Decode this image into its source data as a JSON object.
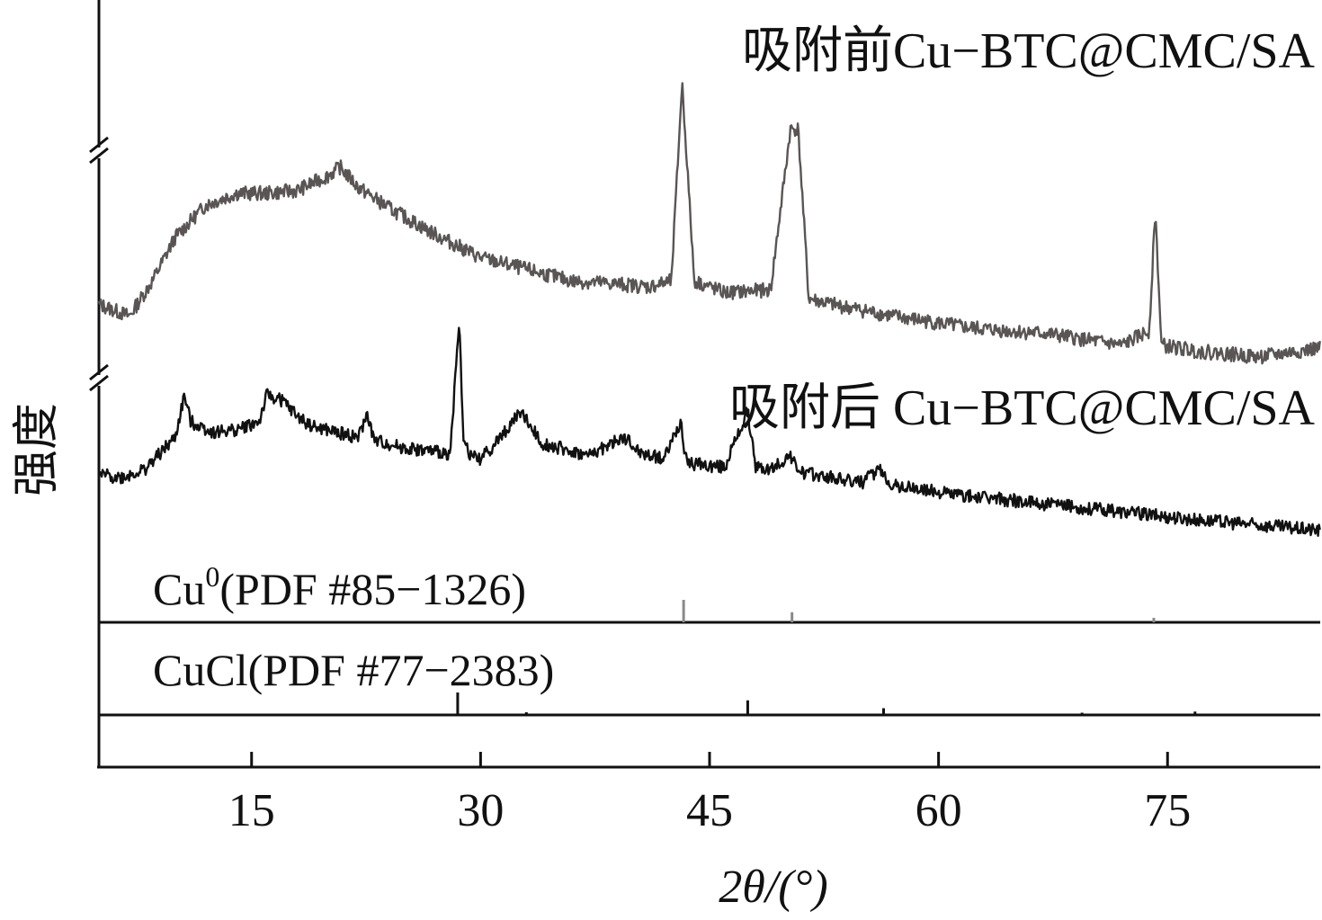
{
  "chart_data": {
    "type": "line",
    "xlabel": "2θ/(°)",
    "ylabel": "强度",
    "xlim": [
      5,
      85
    ],
    "x_ticks": [
      15,
      30,
      45,
      60,
      75
    ],
    "grid": false,
    "y_axis_breaks": true,
    "colors": {
      "before": "#5a5555",
      "after": "#111111",
      "ref_cu": "#8a8a8a",
      "ref_cucl": "#111111"
    },
    "series": [
      {
        "name": "吸附前Cu−BTC@CMC/SA",
        "x": [
          5,
          7,
          8.5,
          10,
          12,
          14,
          16,
          18,
          20,
          20.8,
          22,
          24,
          27,
          30,
          33,
          36,
          39,
          41,
          42.5,
          43.2,
          44,
          46,
          49,
          50.3,
          50.8,
          51.5,
          53,
          57,
          62,
          67,
          72,
          73.8,
          74.2,
          74.6,
          77,
          81,
          85
        ],
        "y": [
          0.22,
          0.18,
          0.3,
          0.45,
          0.56,
          0.6,
          0.6,
          0.61,
          0.66,
          0.69,
          0.62,
          0.55,
          0.46,
          0.38,
          0.34,
          0.3,
          0.29,
          0.28,
          0.3,
          0.98,
          0.3,
          0.26,
          0.27,
          0.82,
          0.82,
          0.24,
          0.22,
          0.18,
          0.14,
          0.12,
          0.08,
          0.13,
          0.54,
          0.08,
          0.06,
          0.04,
          0.07
        ]
      },
      {
        "name": "吸附后 Cu−BTC@CMC/SA",
        "x": [
          5,
          6.5,
          8,
          10,
          10.6,
          11,
          12.5,
          14,
          15.5,
          16,
          17,
          18,
          19,
          22,
          22.6,
          23,
          25,
          28,
          28.6,
          28.9,
          29.4,
          30,
          31,
          32,
          32.6,
          34,
          37,
          39.4,
          40.5,
          42,
          43.1,
          43.4,
          44,
          46,
          47.5,
          48,
          49,
          50.2,
          51,
          52,
          55,
          56.1,
          57,
          62,
          67,
          72,
          77,
          81,
          85
        ],
        "y": [
          0.38,
          0.37,
          0.4,
          0.52,
          0.68,
          0.58,
          0.54,
          0.55,
          0.58,
          0.68,
          0.66,
          0.6,
          0.56,
          0.52,
          0.61,
          0.51,
          0.48,
          0.46,
          0.95,
          0.5,
          0.45,
          0.44,
          0.5,
          0.57,
          0.62,
          0.5,
          0.45,
          0.52,
          0.46,
          0.44,
          0.58,
          0.44,
          0.42,
          0.41,
          0.62,
          0.41,
          0.4,
          0.45,
          0.39,
          0.38,
          0.35,
          0.4,
          0.34,
          0.3,
          0.27,
          0.24,
          0.21,
          0.19,
          0.17
        ]
      }
    ],
    "references": [
      {
        "label": "Cu",
        "sup": "0",
        "detail": "(PDF #85−1326)",
        "peaks": [
          43.3,
          50.4,
          74.1
        ],
        "heights": [
          1.0,
          0.45,
          0.2
        ]
      },
      {
        "label": "CuCl",
        "sup": "",
        "detail": "(PDF #77−2383)",
        "peaks": [
          28.5,
          33.0,
          47.5,
          56.4,
          69.4,
          76.8
        ],
        "heights": [
          1.0,
          0.12,
          0.65,
          0.3,
          0.1,
          0.15
        ]
      }
    ]
  }
}
